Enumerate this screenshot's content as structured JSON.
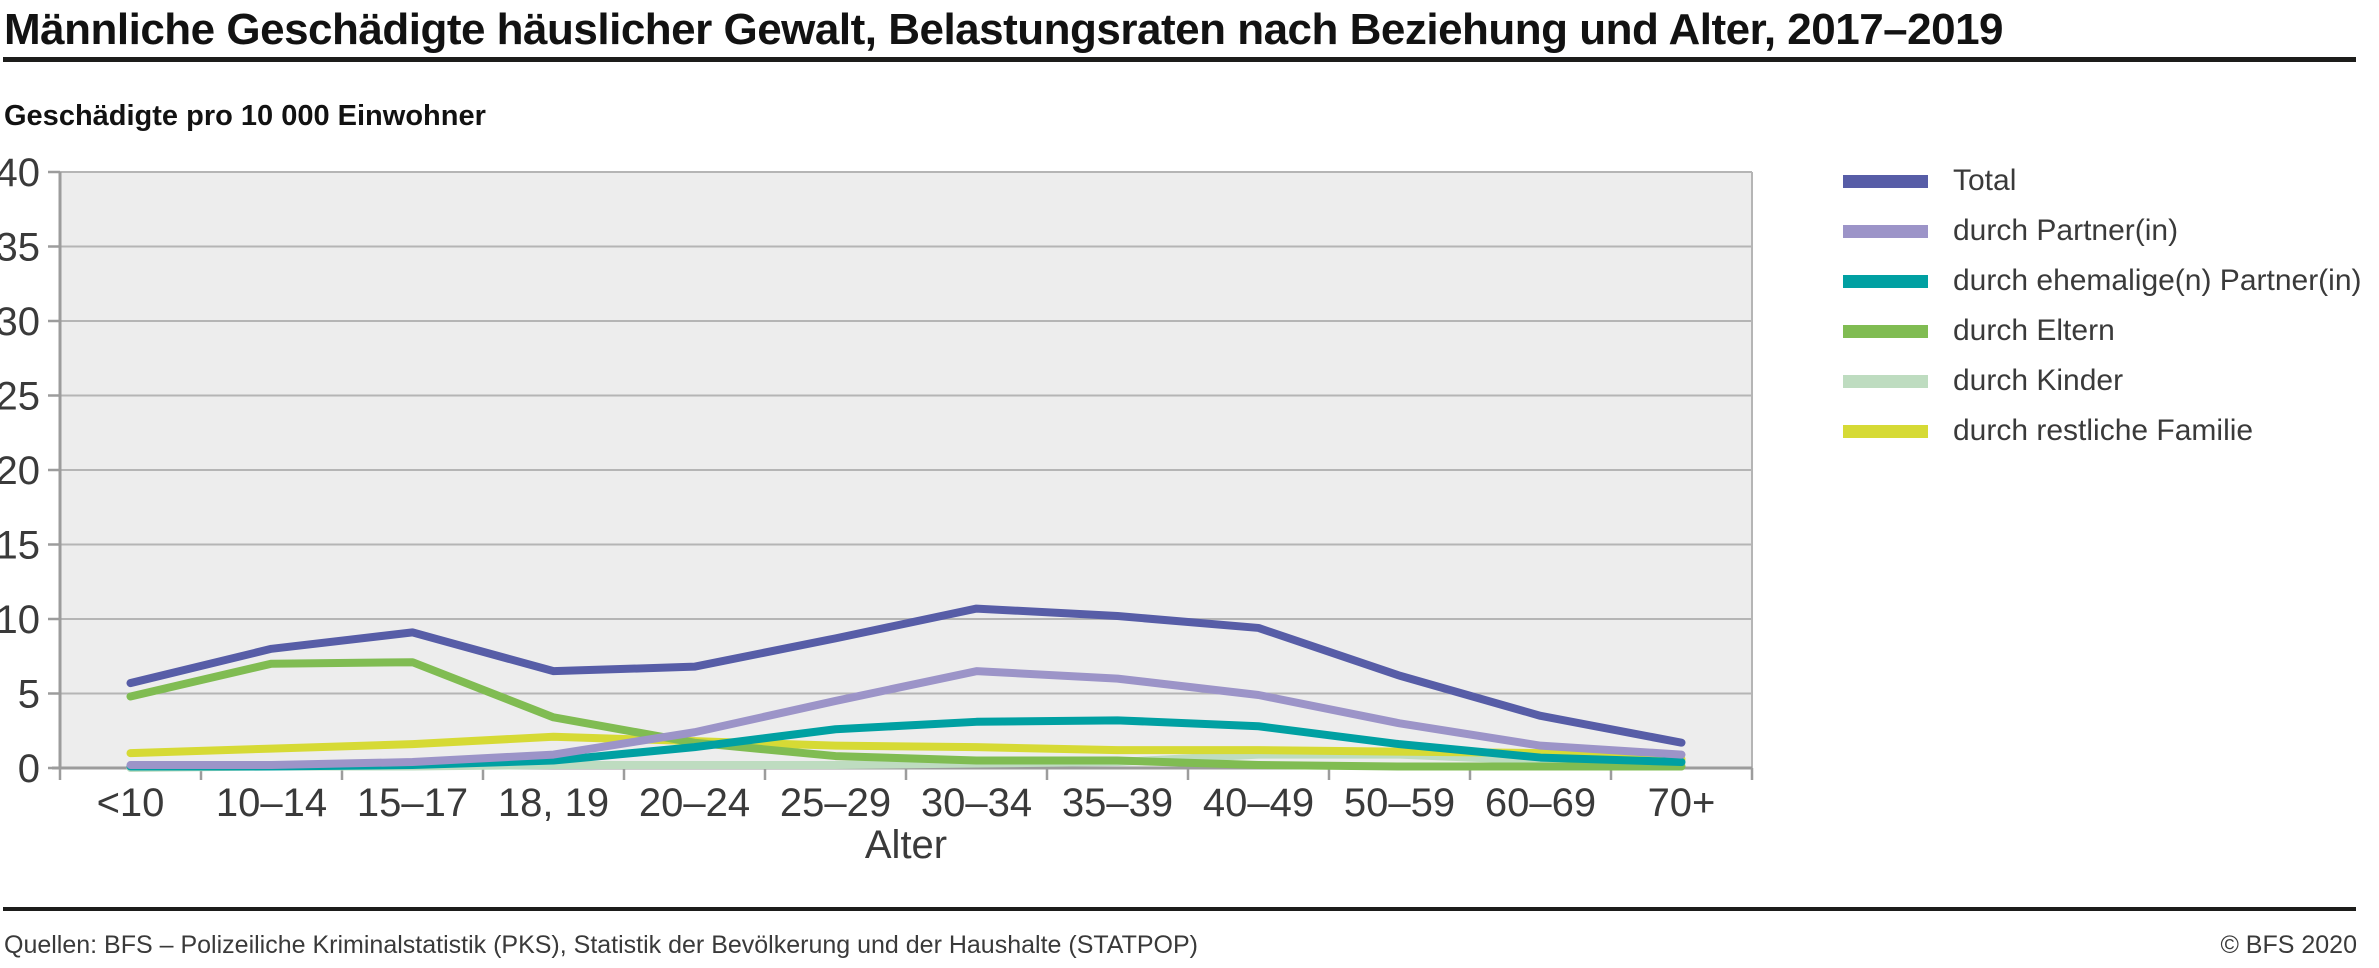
{
  "title": "Männliche Geschädigte häuslicher Gewalt, Belastungsraten nach Beziehung und Alter, 2017–2019",
  "subtitle": "Geschädigte pro 10 000 Einwohner",
  "footer": {
    "sources": "Quellen: BFS – Polizeiliche Kriminalstatistik (PKS), Statistik der Bevölkerung und der Haushalte (STATPOP)",
    "copyright": "© BFS 2020"
  },
  "colors": {
    "plot_background": "#ededed",
    "gridline": "#b5b5b5",
    "axis": "#9c9c9c",
    "tick_text": "#3a3a3a"
  },
  "chart_data": {
    "type": "line",
    "title": "Männliche Geschädigte häuslicher Gewalt, Belastungsraten nach Beziehung und Alter, 2017–2019",
    "subtitle": "Geschädigte pro 10 000 Einwohner",
    "categories": [
      "<10",
      "10–14",
      "15–17",
      "18, 19",
      "20–24",
      "25–29",
      "30–34",
      "35–39",
      "40–49",
      "50–59",
      "60–69",
      "70+"
    ],
    "xlabel": "Alter",
    "ylabel": "Geschädigte pro 10 000 Einwohner",
    "ylim": [
      0,
      40
    ],
    "yticks": [
      0,
      5,
      10,
      15,
      20,
      25,
      30,
      35,
      40
    ],
    "grid": true,
    "legend_position": "right",
    "series": [
      {
        "name": "Total",
        "color": "#575da7",
        "values": [
          5.7,
          8.0,
          9.1,
          6.5,
          6.8,
          8.7,
          10.7,
          10.2,
          9.4,
          6.2,
          3.5,
          1.7
        ]
      },
      {
        "name": "durch Partner(in)",
        "color": "#9c94c8",
        "values": [
          0.2,
          0.2,
          0.4,
          0.9,
          2.4,
          4.5,
          6.5,
          6.0,
          4.9,
          3.0,
          1.5,
          0.9
        ]
      },
      {
        "name": "durch ehemalige(n) Partner(in)",
        "color": "#00a0a2",
        "values": [
          0.1,
          0.1,
          0.2,
          0.5,
          1.4,
          2.6,
          3.1,
          3.2,
          2.8,
          1.6,
          0.7,
          0.4
        ]
      },
      {
        "name": "durch Eltern",
        "color": "#80bc52",
        "values": [
          4.8,
          7.0,
          7.1,
          3.4,
          1.7,
          0.8,
          0.5,
          0.5,
          0.2,
          0.1,
          0.1,
          0.1
        ]
      },
      {
        "name": "durch Kinder",
        "color": "#bedcc0",
        "values": [
          0.0,
          0.1,
          0.1,
          0.2,
          0.2,
          0.2,
          0.3,
          0.4,
          0.9,
          0.9,
          0.5,
          0.3
        ]
      },
      {
        "name": "durch restliche Familie",
        "color": "#d6da35",
        "values": [
          1.0,
          1.3,
          1.6,
          2.1,
          1.8,
          1.5,
          1.4,
          1.2,
          1.2,
          1.1,
          1.0,
          0.6
        ]
      }
    ]
  }
}
